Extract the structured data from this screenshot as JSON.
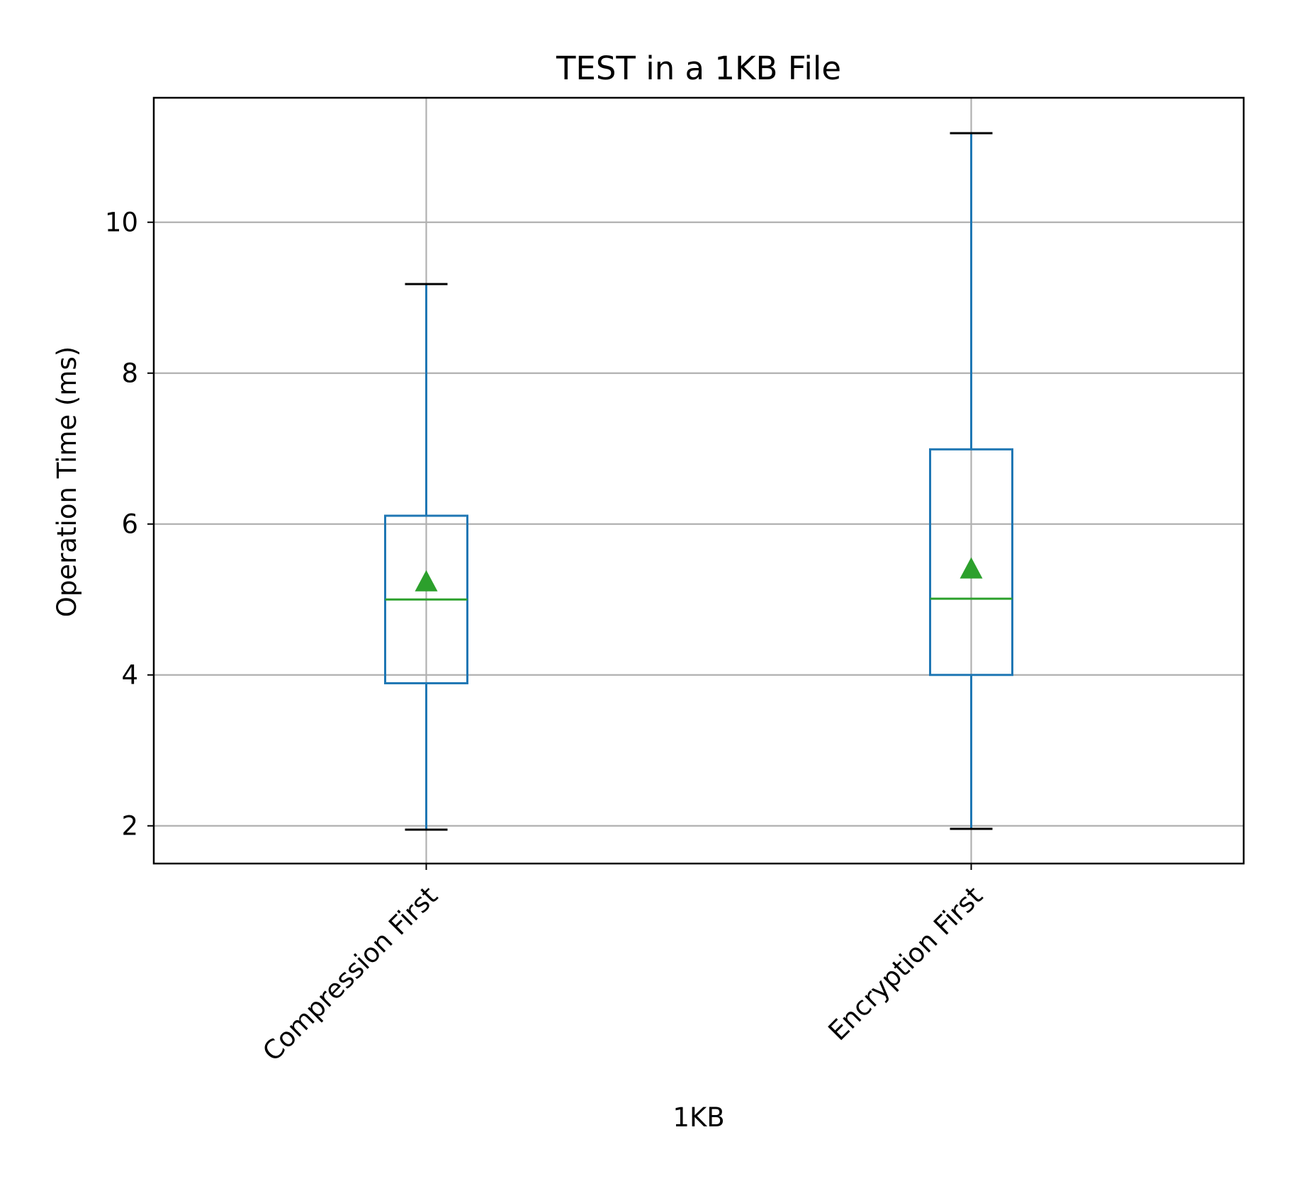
{
  "chart_data": {
    "type": "box",
    "title": "TEST in a 1KB File",
    "xlabel": "1KB",
    "ylabel": "Operation Time (ms)",
    "ylim": [
      1.5,
      11.65
    ],
    "yticks": [
      2,
      4,
      6,
      8,
      10
    ],
    "grid": true,
    "showmeans": true,
    "categories": [
      "Compression First",
      "Encryption First"
    ],
    "boxes": [
      {
        "category": "Compression First",
        "whisker_low": 1.95,
        "q1": 3.89,
        "median": 5.0,
        "q3": 6.11,
        "whisker_high": 9.18,
        "mean": 5.23
      },
      {
        "category": "Encryption First",
        "whisker_low": 1.96,
        "q1": 4.0,
        "median": 5.01,
        "q3": 6.99,
        "whisker_high": 11.18,
        "mean": 5.4
      }
    ],
    "colors": {
      "box": "#1f77b4",
      "median": "#2ca02c",
      "mean": "#2ca02c",
      "whisker_cap": "#000000",
      "grid": "#b0b0b0",
      "axes": "#000000"
    }
  }
}
